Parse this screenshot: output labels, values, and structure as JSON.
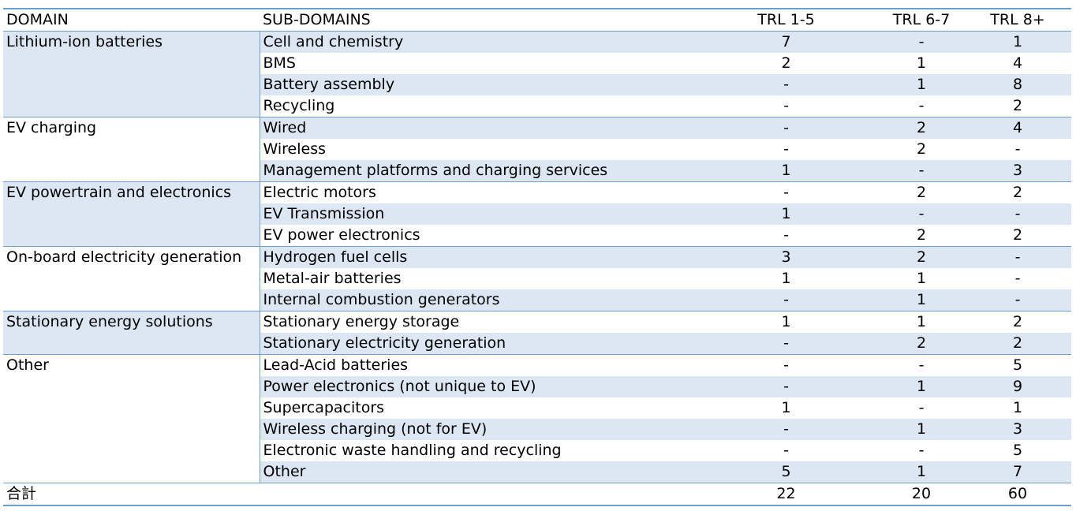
{
  "headers": [
    "DOMAIN",
    "SUB-DOMAINS",
    "TRL 1-5",
    "TRL 6-7",
    "TRL 8+"
  ],
  "groups": [
    {
      "domain": "Lithium-ion batteries",
      "rows": [
        {
          "sub": "Cell and chemistry",
          "t1": "7",
          "t2": "-",
          "t3": "1"
        },
        {
          "sub": "BMS",
          "t1": "2",
          "t2": "1",
          "t3": "4"
        },
        {
          "sub": "Battery assembly",
          "t1": "-",
          "t2": "1",
          "t3": "8"
        },
        {
          "sub": "Recycling",
          "t1": "-",
          "t2": "-",
          "t3": "2"
        }
      ]
    },
    {
      "domain": "EV charging",
      "rows": [
        {
          "sub": "Wired",
          "t1": "-",
          "t2": "2",
          "t3": "4"
        },
        {
          "sub": "Wireless",
          "t1": "-",
          "t2": "2",
          "t3": "-"
        },
        {
          "sub": "Management platforms and charging services",
          "t1": "1",
          "t2": "-",
          "t3": "3"
        }
      ]
    },
    {
      "domain": "EV powertrain and electronics",
      "rows": [
        {
          "sub": "Electric motors",
          "t1": "-",
          "t2": "2",
          "t3": "2"
        },
        {
          "sub": "EV Transmission",
          "t1": "1",
          "t2": "-",
          "t3": "-"
        },
        {
          "sub": "EV power electronics",
          "t1": "-",
          "t2": "2",
          "t3": "2"
        }
      ]
    },
    {
      "domain": "On-board electricity generation",
      "rows": [
        {
          "sub": "Hydrogen fuel cells",
          "t1": "3",
          "t2": "2",
          "t3": "-"
        },
        {
          "sub": "Metal-air batteries",
          "t1": "1",
          "t2": "1",
          "t3": "-"
        },
        {
          "sub": "Internal combustion generators",
          "t1": "-",
          "t2": "1",
          "t3": "-"
        }
      ]
    },
    {
      "domain": "Stationary energy solutions",
      "rows": [
        {
          "sub": "Stationary energy storage",
          "t1": "1",
          "t2": "1",
          "t3": "2"
        },
        {
          "sub": "Stationary electricity generation",
          "t1": "-",
          "t2": "2",
          "t3": "2"
        }
      ]
    },
    {
      "domain": "Other",
      "rows": [
        {
          "sub": "Lead-Acid batteries",
          "t1": "-",
          "t2": "-",
          "t3": "5"
        },
        {
          "sub": "Power electronics (not unique to EV)",
          "t1": "-",
          "t2": "1",
          "t3": "9"
        },
        {
          "sub": "Supercapacitors",
          "t1": "1",
          "t2": "-",
          "t3": "1"
        },
        {
          "sub": "Wireless charging (not for EV)",
          "t1": "-",
          "t2": "1",
          "t3": "3"
        },
        {
          "sub": "Electronic waste handling and recycling",
          "t1": "-",
          "t2": "-",
          "t3": "5"
        },
        {
          "sub": "Other",
          "t1": "5",
          "t2": "1",
          "t3": "7"
        }
      ]
    }
  ],
  "total": {
    "label": "合計",
    "t1": "22",
    "t2": "20",
    "t3": "60"
  },
  "colors": {
    "rule": "#6f9fce",
    "shade": "#dce7f3"
  }
}
